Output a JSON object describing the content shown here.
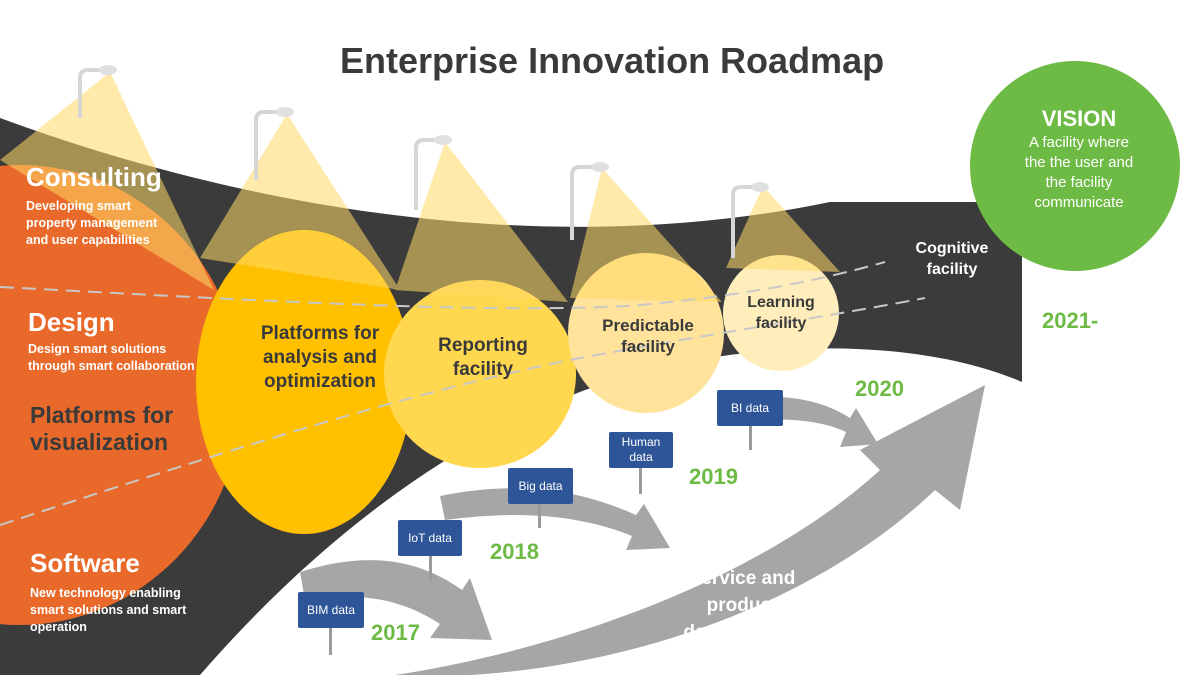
{
  "title": "Enterprise Innovation Roadmap",
  "areas": [
    {
      "name": "Consulting",
      "description_lines": [
        "Developing smart",
        "property management",
        "and user capabilities"
      ]
    },
    {
      "name": "Design",
      "description_lines": [
        "Design smart solutions",
        "through smart collaboration"
      ]
    },
    {
      "name": "Platforms for visualization",
      "name_lines": [
        "Platforms for",
        "visualization"
      ]
    },
    {
      "name": "Software",
      "description_lines": [
        "New technology enabling",
        "smart solutions and smart",
        "operation"
      ]
    }
  ],
  "stages": [
    {
      "label_lines": [
        "Platforms for",
        "analysis and",
        "optimization"
      ],
      "color": "#ffc000"
    },
    {
      "label_lines": [
        "Reporting",
        "facility"
      ],
      "color": "#ffd84f"
    },
    {
      "label_lines": [
        "Predictable",
        "facility"
      ],
      "color": "#ffe39b"
    },
    {
      "label_lines": [
        "Learning",
        "facility"
      ],
      "color": "#ffeebb"
    }
  ],
  "cognitive": {
    "label_lines": [
      "Cognitive",
      "facility"
    ]
  },
  "vision": {
    "title": "VISION",
    "text_lines": [
      "A facility where",
      "the the user and",
      "the facility",
      "communicate"
    ],
    "color": "#6dbb44"
  },
  "data_tags": [
    {
      "label_lines": [
        "BIM data"
      ]
    },
    {
      "label_lines": [
        "IoT data"
      ]
    },
    {
      "label_lines": [
        "Big data"
      ]
    },
    {
      "label_lines": [
        "Human",
        "data"
      ]
    },
    {
      "label_lines": [
        "BI data"
      ]
    }
  ],
  "years": [
    "2017",
    "2018",
    "2019",
    "2020",
    "2021-"
  ],
  "service": {
    "label_lines": [
      "Service and",
      "product",
      "development"
    ]
  },
  "colors": {
    "road": "#3b3b3b",
    "orange": "#e8692a",
    "arrow": "#a6a6a6",
    "tag": "#2e5597",
    "year": "#6dbb44"
  }
}
